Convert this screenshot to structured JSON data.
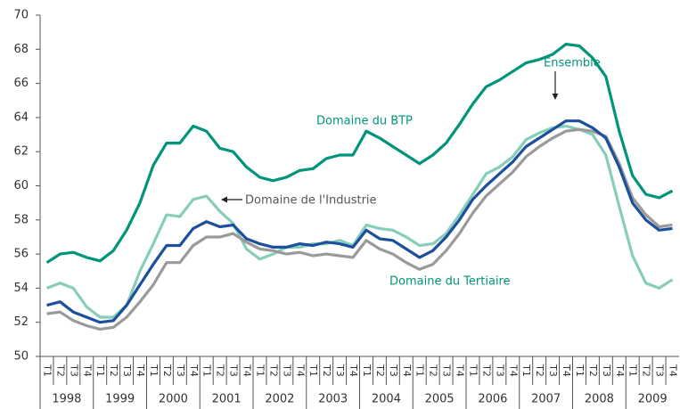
{
  "chart_data": {
    "type": "line",
    "categories": [
      "T1",
      "T2",
      "T3",
      "T4",
      "T1",
      "T2",
      "T3",
      "T4",
      "T1",
      "T2",
      "T3",
      "T4",
      "T1",
      "T2",
      "T3",
      "T4",
      "T1",
      "T2",
      "T3",
      "T4",
      "T1",
      "T2",
      "T3",
      "T4",
      "T1",
      "T2",
      "T3",
      "T4",
      "T1",
      "T2",
      "T3",
      "T4",
      "T1",
      "T2",
      "T3",
      "T4",
      "T1",
      "T2",
      "T3",
      "T4",
      "T1",
      "T2",
      "T3",
      "T4",
      "T1",
      "T2",
      "T3",
      "T4"
    ],
    "years": [
      "1998",
      "1999",
      "2000",
      "2001",
      "2002",
      "2003",
      "2004",
      "2005",
      "2006",
      "2007",
      "2008",
      "2009"
    ],
    "ylim": [
      50,
      70
    ],
    "yticks": [
      50,
      52,
      54,
      56,
      58,
      60,
      62,
      64,
      66,
      68,
      70
    ],
    "grid": false,
    "series": [
      {
        "name": "Domaine du BTP",
        "color": "#00957a",
        "values": [
          55.5,
          56.0,
          56.1,
          55.8,
          55.6,
          56.2,
          57.4,
          59.0,
          61.2,
          62.5,
          62.5,
          63.5,
          63.2,
          62.2,
          62.0,
          61.1,
          60.5,
          60.3,
          60.5,
          60.9,
          61.0,
          61.6,
          61.8,
          61.8,
          63.2,
          62.8,
          62.3,
          61.8,
          61.3,
          61.8,
          62.5,
          63.6,
          64.8,
          65.8,
          66.2,
          66.7,
          67.2,
          67.4,
          67.7,
          68.3,
          68.2,
          67.5,
          66.4,
          63.2,
          60.6,
          59.5,
          59.3,
          59.7
        ]
      },
      {
        "name": "Domaine de l'Industrie",
        "color": "#86cdbb",
        "values": [
          54.0,
          54.3,
          54.0,
          52.9,
          52.3,
          52.3,
          53.0,
          55.0,
          56.6,
          58.3,
          58.2,
          59.2,
          59.4,
          58.5,
          57.8,
          56.3,
          55.7,
          56.0,
          56.4,
          56.4,
          56.6,
          56.6,
          56.8,
          56.5,
          57.7,
          57.5,
          57.4,
          57.0,
          56.5,
          56.6,
          57.2,
          58.3,
          59.5,
          60.7,
          61.1,
          61.7,
          62.7,
          63.1,
          63.4,
          63.5,
          63.3,
          63.0,
          61.8,
          58.8,
          55.9,
          54.3,
          54.0,
          54.5
        ]
      },
      {
        "name": "Domaine du Tertiaire",
        "color": "#9a9a9a",
        "values": [
          52.5,
          52.6,
          52.1,
          51.8,
          51.6,
          51.7,
          52.3,
          53.2,
          54.2,
          55.5,
          55.5,
          56.5,
          57.0,
          57.0,
          57.2,
          56.7,
          56.3,
          56.2,
          56.0,
          56.1,
          55.9,
          56.0,
          55.9,
          55.8,
          56.8,
          56.3,
          56.0,
          55.5,
          55.1,
          55.4,
          56.2,
          57.2,
          58.4,
          59.4,
          60.1,
          60.8,
          61.7,
          62.3,
          62.8,
          63.2,
          63.3,
          63.2,
          62.9,
          61.3,
          59.3,
          58.3,
          57.6,
          57.7
        ]
      },
      {
        "name": "Ensemble",
        "color": "#1c4f9c",
        "values": [
          53.0,
          53.2,
          52.6,
          52.3,
          52.0,
          52.1,
          53.0,
          54.2,
          55.4,
          56.5,
          56.5,
          57.5,
          57.9,
          57.6,
          57.7,
          56.9,
          56.6,
          56.4,
          56.4,
          56.6,
          56.5,
          56.7,
          56.6,
          56.4,
          57.4,
          56.9,
          56.8,
          56.3,
          55.8,
          56.2,
          57.0,
          58.0,
          59.2,
          60.0,
          60.7,
          61.4,
          62.3,
          62.8,
          63.3,
          63.8,
          63.8,
          63.4,
          62.8,
          61.1,
          59.0,
          58.0,
          57.4,
          57.5
        ]
      }
    ]
  }
}
